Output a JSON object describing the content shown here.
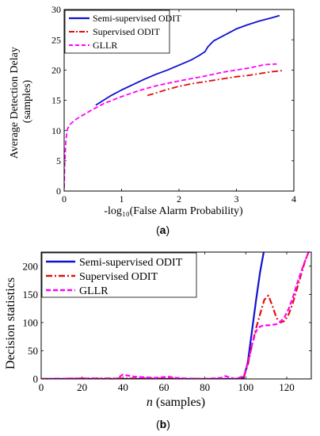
{
  "captions": {
    "a": "a",
    "b": "b"
  },
  "colors": {
    "semi": "#1010d0",
    "supervised": "#e01010",
    "gllr": "#ff00ff"
  },
  "chart_data": [
    {
      "type": "line",
      "xlabel": "-log₁₀(False Alarm Probability)",
      "ylabel": "Average Detection Delay (samples)",
      "ylabel_lines": [
        "Average Detection Delay",
        "(samples)"
      ],
      "xlim": [
        0,
        4
      ],
      "ylim": [
        0,
        30
      ],
      "xticks": [
        0,
        1,
        2,
        3,
        4
      ],
      "yticks": [
        0,
        5,
        10,
        15,
        20,
        25,
        30
      ],
      "grid": false,
      "legend_position": "top-left",
      "series": [
        {
          "name": "Semi-supervised ODIT",
          "color": "#1010d0",
          "style": "solid",
          "x": [
            0.55,
            0.8,
            1.0,
            1.2,
            1.4,
            1.6,
            1.8,
            2.0,
            2.2,
            2.35,
            2.45,
            2.5,
            2.6,
            2.8,
            3.0,
            3.2,
            3.4,
            3.6,
            3.75
          ],
          "y": [
            14.2,
            15.7,
            16.7,
            17.6,
            18.5,
            19.3,
            20.0,
            20.8,
            21.6,
            22.4,
            23.0,
            23.8,
            24.8,
            25.8,
            26.8,
            27.5,
            28.1,
            28.6,
            29.0
          ]
        },
        {
          "name": "Supervised ODIT",
          "color": "#e01010",
          "style": "dashdot",
          "x": [
            1.45,
            1.6,
            1.8,
            2.0,
            2.2,
            2.4,
            2.6,
            2.8,
            3.0,
            3.2,
            3.4,
            3.6,
            3.8
          ],
          "y": [
            15.8,
            16.2,
            16.8,
            17.3,
            17.7,
            18.0,
            18.3,
            18.6,
            18.9,
            19.1,
            19.4,
            19.7,
            19.9
          ]
        },
        {
          "name": "GLLR",
          "color": "#ff00ff",
          "style": "dashed",
          "x": [
            0.0,
            0.01,
            0.03,
            0.06,
            0.1,
            0.2,
            0.3,
            0.5,
            0.7,
            1.0,
            1.3,
            1.6,
            2.0,
            2.4,
            2.8,
            3.2,
            3.5,
            3.7
          ],
          "y": [
            0.5,
            4.5,
            8.5,
            10.3,
            11.0,
            11.8,
            12.4,
            13.5,
            14.5,
            15.6,
            16.6,
            17.4,
            18.2,
            18.9,
            19.7,
            20.3,
            20.9,
            21.0
          ]
        }
      ]
    },
    {
      "type": "line",
      "xlabel": "n (samples)",
      "xlabel_var": "n",
      "xlabel_rest": "(samples)",
      "ylabel": "Decision statistics",
      "xlim": [
        0,
        132
      ],
      "ylim": [
        0,
        225
      ],
      "xticks": [
        0,
        20,
        40,
        60,
        80,
        100,
        120
      ],
      "yticks": [
        0,
        50,
        100,
        150,
        200
      ],
      "grid": false,
      "legend_position": "top-left",
      "series": [
        {
          "name": "Semi-supervised ODIT",
          "color": "#1010d0",
          "style": "solid",
          "x": [
            0,
            95,
            99,
            101,
            103,
            105,
            107,
            109
          ],
          "y": [
            0,
            0,
            2,
            30,
            85,
            140,
            190,
            230
          ]
        },
        {
          "name": "Supervised ODIT",
          "color": "#e01010",
          "style": "dashdot",
          "x": [
            0,
            20,
            40,
            60,
            80,
            95,
            99,
            101,
            103,
            105,
            107,
            109,
            111,
            113,
            115,
            117,
            119,
            121,
            123,
            125,
            127,
            129,
            131
          ],
          "y": [
            0,
            1,
            1,
            1,
            0,
            0,
            3,
            25,
            60,
            90,
            115,
            140,
            148,
            130,
            108,
            100,
            103,
            115,
            135,
            160,
            185,
            210,
            228
          ]
        },
        {
          "name": "GLLR",
          "color": "#ff00ff",
          "style": "dashed",
          "x": [
            0,
            20,
            36,
            38,
            40,
            42,
            46,
            56,
            62,
            66,
            70,
            80,
            88,
            90,
            92,
            95,
            99,
            101,
            103,
            105,
            107,
            109,
            111,
            115,
            117,
            119,
            121,
            123,
            125,
            127,
            129,
            131
          ],
          "y": [
            0,
            1,
            0,
            3,
            8,
            6,
            4,
            2,
            4,
            2,
            1,
            0,
            2,
            5,
            3,
            0,
            5,
            28,
            60,
            85,
            93,
            95,
            95,
            97,
            102,
            110,
            125,
            145,
            168,
            190,
            210,
            228
          ]
        }
      ]
    }
  ]
}
